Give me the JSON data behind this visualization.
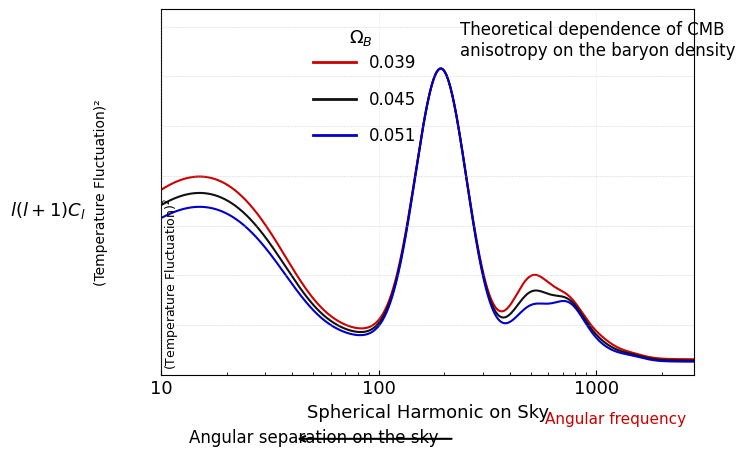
{
  "title_line1": "Theoretical dependence of CMB",
  "title_line2": "anisotropy on the baryon density",
  "xlabel": "Spherical Harmonic on Sky",
  "xlabel2": "Angular frequency",
  "xlabel2_color": "#cc0000",
  "ylabel_rot": "(Temperature Fluctuation)²",
  "ylabel_left": "l(l+1)C_l",
  "bottom_label": "Angular separation on the sky",
  "legend_title": "Ω_B",
  "series": [
    {
      "label": "0.039",
      "color": "#cc0000",
      "omega": 0.039
    },
    {
      "label": "0.045",
      "color": "#111111",
      "omega": 0.045
    },
    {
      "label": "0.051",
      "color": "#0000cc",
      "omega": 0.051
    }
  ],
  "xlim_log": [
    1.0,
    3.4
  ],
  "ylim": [
    0.0,
    1.0
  ],
  "background_color": "#ffffff",
  "plot_bg": "#ffffff"
}
